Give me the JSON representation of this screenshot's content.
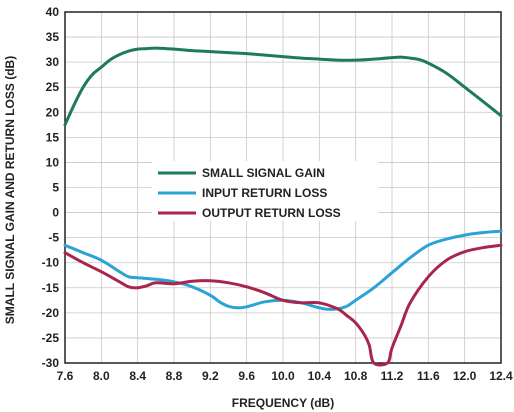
{
  "chart_data": {
    "type": "line",
    "title": "",
    "xlabel": "FREQUENCY (dB)",
    "ylabel": "SMALL SIGNAL GAIN AND RETURN LOSS (dB)",
    "xlim": [
      7.6,
      12.4
    ],
    "ylim": [
      -30,
      40
    ],
    "xticks": [
      "7.6",
      "8.0",
      "8.4",
      "8.8",
      "9.2",
      "9.6",
      "10.0",
      "10.4",
      "10.8",
      "11.2",
      "11.6",
      "12.0",
      "12.4"
    ],
    "yticks": [
      "40",
      "35",
      "30",
      "25",
      "20",
      "15",
      "10",
      "5",
      "0",
      "-5",
      "-10",
      "-15",
      "-20",
      "-25",
      "-30"
    ],
    "grid": true,
    "legend_position": "center-left",
    "series": [
      {
        "name": "SMALL SIGNAL GAIN",
        "color": "#1e7a5c",
        "x": [
          7.6,
          7.7,
          7.8,
          7.9,
          8.0,
          8.1,
          8.2,
          8.3,
          8.4,
          8.5,
          8.6,
          8.8,
          9.0,
          9.2,
          9.4,
          9.6,
          9.8,
          10.0,
          10.2,
          10.4,
          10.6,
          10.8,
          11.0,
          11.2,
          11.3,
          11.4,
          11.5,
          11.6,
          11.8,
          12.0,
          12.2,
          12.4
        ],
        "y": [
          17.5,
          21.5,
          25.0,
          27.5,
          29.0,
          30.5,
          31.5,
          32.2,
          32.6,
          32.7,
          32.8,
          32.6,
          32.3,
          32.1,
          31.9,
          31.7,
          31.4,
          31.1,
          30.8,
          30.6,
          30.4,
          30.4,
          30.6,
          30.9,
          31.0,
          30.8,
          30.5,
          29.8,
          27.8,
          25.0,
          22.2,
          19.3
        ]
      },
      {
        "name": "INPUT RETURN LOSS",
        "color": "#2aa3d6",
        "x": [
          7.6,
          7.8,
          8.0,
          8.2,
          8.3,
          8.4,
          8.6,
          8.8,
          9.0,
          9.2,
          9.3,
          9.4,
          9.5,
          9.6,
          9.8,
          10.0,
          10.2,
          10.4,
          10.5,
          10.6,
          10.7,
          10.8,
          11.0,
          11.2,
          11.4,
          11.6,
          11.8,
          12.0,
          12.2,
          12.4
        ],
        "y": [
          -6.5,
          -8.0,
          -9.5,
          -11.8,
          -12.8,
          -13.0,
          -13.3,
          -13.8,
          -14.8,
          -16.5,
          -17.8,
          -18.7,
          -19.0,
          -18.8,
          -17.8,
          -17.5,
          -18.0,
          -19.0,
          -19.3,
          -19.2,
          -18.7,
          -17.5,
          -15.0,
          -12.0,
          -9.0,
          -6.5,
          -5.3,
          -4.5,
          -4.0,
          -3.7
        ]
      },
      {
        "name": "OUTPUT RETURN LOSS",
        "color": "#a8254d",
        "x": [
          7.6,
          7.8,
          8.0,
          8.2,
          8.3,
          8.4,
          8.5,
          8.6,
          8.8,
          9.0,
          9.2,
          9.4,
          9.6,
          9.8,
          10.0,
          10.2,
          10.4,
          10.6,
          10.7,
          10.8,
          10.9,
          10.95,
          11.0,
          11.15,
          11.2,
          11.3,
          11.4,
          11.6,
          11.8,
          12.0,
          12.2,
          12.4
        ],
        "y": [
          -8.0,
          -10.0,
          -11.8,
          -13.8,
          -14.8,
          -15.0,
          -14.6,
          -14.0,
          -14.2,
          -13.7,
          -13.6,
          -14.0,
          -14.8,
          -16.0,
          -17.5,
          -18.0,
          -18.0,
          -19.2,
          -20.5,
          -22.0,
          -24.5,
          -26.5,
          -30.0,
          -30.0,
          -27.0,
          -22.5,
          -18.0,
          -12.8,
          -9.5,
          -7.8,
          -7.0,
          -6.5
        ]
      }
    ]
  }
}
